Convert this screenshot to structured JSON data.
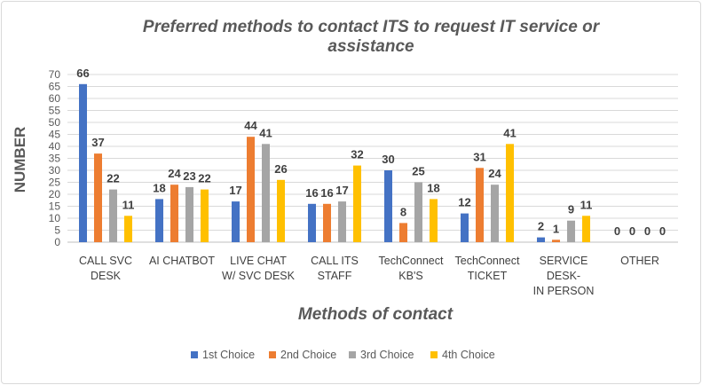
{
  "chart_data": {
    "type": "bar",
    "title": "Preferred methods to contact ITS to request IT service or assistance",
    "title_lines": [
      "Preferred methods to contact ITS to request IT service or",
      "assistance"
    ],
    "xlabel": "Methods of contact",
    "ylabel": "NUMBER",
    "ylim": [
      0,
      70
    ],
    "yticks": [
      0,
      5,
      10,
      15,
      20,
      25,
      30,
      35,
      40,
      45,
      50,
      55,
      60,
      65,
      70
    ],
    "grid": true,
    "legend_position": "bottom",
    "categories": [
      [
        "CALL SVC",
        "DESK"
      ],
      [
        "AI CHATBOT"
      ],
      [
        "LIVE CHAT",
        "W/ SVC DESK"
      ],
      [
        "CALL ITS",
        "STAFF"
      ],
      [
        "TechConnect",
        "KB'S"
      ],
      [
        "TechConnect",
        "TICKET"
      ],
      [
        "SERVICE",
        "DESK-",
        "IN PERSON"
      ],
      [
        "OTHER"
      ]
    ],
    "series": [
      {
        "name": "1st Choice",
        "color": "#4472c4",
        "values": [
          66,
          18,
          17,
          16,
          30,
          12,
          2,
          0
        ]
      },
      {
        "name": "2nd Choice",
        "color": "#ed7d31",
        "values": [
          37,
          24,
          44,
          16,
          8,
          31,
          1,
          0
        ]
      },
      {
        "name": "3rd Choice",
        "color": "#a5a5a5",
        "values": [
          22,
          23,
          41,
          17,
          25,
          24,
          9,
          0
        ]
      },
      {
        "name": "4th Choice",
        "color": "#ffc000",
        "values": [
          11,
          22,
          26,
          32,
          18,
          41,
          11,
          0
        ]
      }
    ]
  }
}
